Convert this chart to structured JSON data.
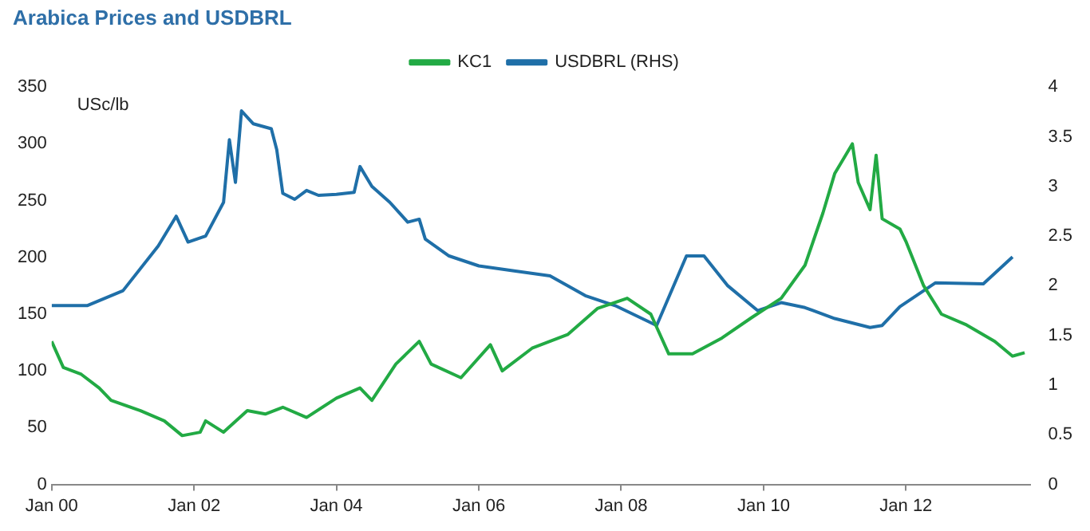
{
  "chart_data": {
    "type": "line",
    "title": "Arabica Prices and USDBRL",
    "ylabel": "USc/lb",
    "xlim": [
      "2000-01",
      "2013-10"
    ],
    "xticks": [
      {
        "value": "2000-01",
        "label": "Jan 00"
      },
      {
        "value": "2002-01",
        "label": "Jan 02"
      },
      {
        "value": "2004-01",
        "label": "Jan 04"
      },
      {
        "value": "2006-01",
        "label": "Jan 06"
      },
      {
        "value": "2008-01",
        "label": "Jan 08"
      },
      {
        "value": "2010-01",
        "label": "Jan 10"
      },
      {
        "value": "2012-01",
        "label": "Jan 12"
      }
    ],
    "ylim": [
      0,
      350
    ],
    "yticks": [
      0,
      50,
      100,
      150,
      200,
      250,
      300,
      350
    ],
    "y2lim": [
      0,
      4
    ],
    "y2ticks": [
      0,
      0.5,
      1,
      1.5,
      2,
      2.5,
      3,
      3.5,
      4
    ],
    "grid": false,
    "legend": "top",
    "marker": "none",
    "line_style": "solid",
    "series": [
      {
        "name": "KC1",
        "color": "#22aa44",
        "x": [
          "2000-01",
          "2000-03",
          "2000-06",
          "2000-09",
          "2000-11",
          "2001-04",
          "2001-08",
          "2001-11",
          "2002-02",
          "2002-03",
          "2002-06",
          "2002-10",
          "2003-01",
          "2003-04",
          "2003-08",
          "2004-01",
          "2004-05",
          "2004-07",
          "2004-11",
          "2005-03",
          "2005-05",
          "2005-10",
          "2006-03",
          "2006-05",
          "2006-10",
          "2007-04",
          "2007-09",
          "2008-02",
          "2008-06",
          "2008-09",
          "2009-01",
          "2009-06",
          "2009-11",
          "2010-04",
          "2010-08",
          "2010-11",
          "2011-01",
          "2011-04",
          "2011-05",
          "2011-07",
          "2011-08",
          "2011-09",
          "2011-12",
          "2012-01",
          "2012-04",
          "2012-07",
          "2012-11",
          "2013-04",
          "2013-07",
          "2013-09"
        ],
        "values": [
          126,
          103,
          97,
          85,
          74,
          65,
          56,
          43,
          46,
          56,
          46,
          65,
          62,
          68,
          59,
          76,
          85,
          74,
          106,
          126,
          106,
          94,
          123,
          100,
          120,
          132,
          155,
          164,
          150,
          115,
          115,
          129,
          147,
          164,
          193,
          239,
          274,
          300,
          266,
          242,
          290,
          234,
          225,
          214,
          175,
          150,
          141,
          126,
          113,
          116
        ]
      },
      {
        "name": "USDBRL (RHS)",
        "color": "#1f6fa8",
        "axis": "y2",
        "x": [
          "2000-01",
          "2000-07",
          "2001-01",
          "2001-07",
          "2001-10",
          "2001-12",
          "2002-03",
          "2002-06",
          "2002-07",
          "2002-08",
          "2002-09",
          "2002-11",
          "2003-02",
          "2003-03",
          "2003-04",
          "2003-06",
          "2003-08",
          "2003-10",
          "2004-01",
          "2004-04",
          "2004-05",
          "2004-07",
          "2004-10",
          "2005-01",
          "2005-03",
          "2005-04",
          "2005-08",
          "2006-01",
          "2006-07",
          "2007-01",
          "2007-07",
          "2007-12",
          "2008-07",
          "2008-12",
          "2009-03",
          "2009-07",
          "2009-12",
          "2010-04",
          "2010-08",
          "2011-01",
          "2011-07",
          "2011-09",
          "2011-12",
          "2012-06",
          "2013-02",
          "2013-07"
        ],
        "values": [
          1.8,
          1.8,
          1.95,
          2.4,
          2.7,
          2.44,
          2.5,
          2.84,
          3.47,
          3.04,
          3.76,
          3.63,
          3.58,
          3.37,
          2.93,
          2.87,
          2.96,
          2.91,
          2.92,
          2.94,
          3.2,
          3.0,
          2.84,
          2.64,
          2.67,
          2.47,
          2.3,
          2.2,
          2.15,
          2.1,
          1.9,
          1.8,
          1.6,
          2.3,
          2.3,
          2.0,
          1.75,
          1.83,
          1.78,
          1.67,
          1.58,
          1.6,
          1.79,
          2.03,
          2.02,
          2.29
        ]
      }
    ]
  }
}
